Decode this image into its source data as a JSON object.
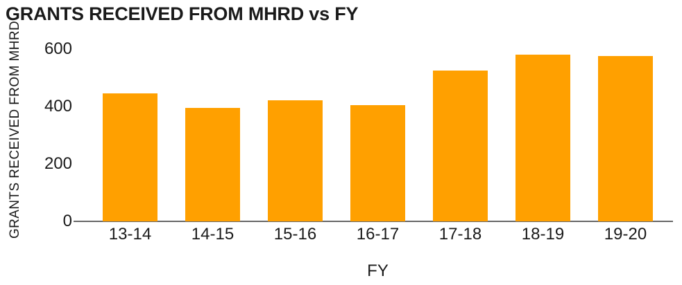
{
  "chart_data": {
    "type": "bar",
    "title": "GRANTS RECEIVED FROM MHRD vs FY",
    "categories": [
      "13-14",
      "14-15",
      "15-16",
      "16-17",
      "17-18",
      "18-19",
      "19-20"
    ],
    "values": [
      445,
      395,
      420,
      405,
      525,
      580,
      575
    ],
    "xlabel": "FY",
    "ylabel": "GRANTS RECEIVED FROM MHRD",
    "ylim": [
      0,
      600
    ],
    "yticks": [
      0,
      200,
      400,
      600
    ],
    "grid": false,
    "legend": false,
    "bar_color": "#FFA000",
    "axis_color": "#666666",
    "text_color": "#1A1A1A",
    "background_color": "#FFFFFF"
  }
}
